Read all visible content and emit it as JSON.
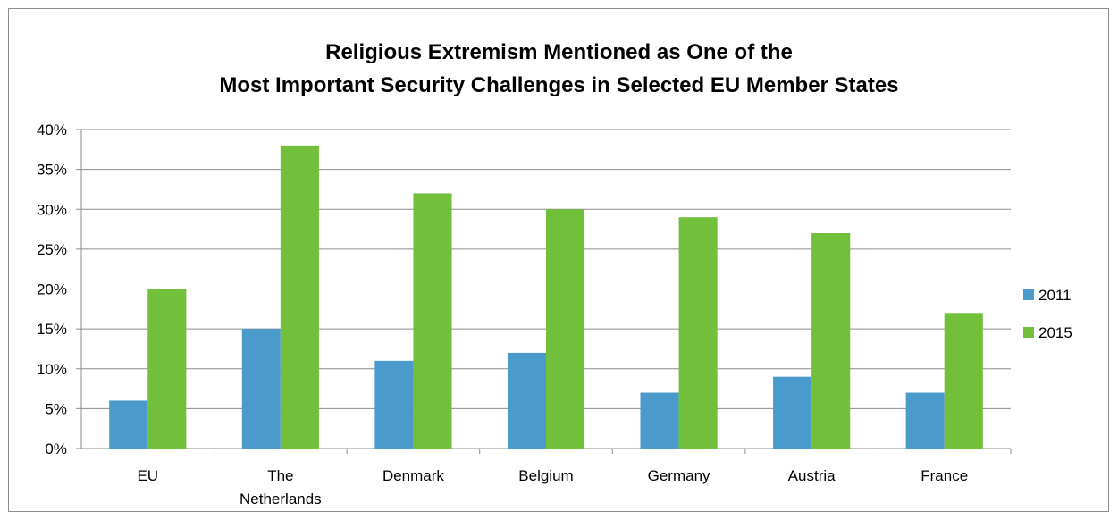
{
  "chart_data": {
    "type": "bar",
    "title_lines": [
      "Religious Extremism Mentioned as One of the",
      "Most Important Security Challenges in Selected EU Member States"
    ],
    "categories": [
      [
        "EU"
      ],
      [
        "The",
        "Netherlands"
      ],
      [
        "Denmark"
      ],
      [
        "Belgium"
      ],
      [
        "Germany"
      ],
      [
        "Austria"
      ],
      [
        "France"
      ]
    ],
    "series": [
      {
        "name": "2011",
        "color": "#4a9bcc",
        "values": [
          6,
          15,
          11,
          12,
          7,
          9,
          7
        ]
      },
      {
        "name": "2015",
        "color": "#72bf3b",
        "values": [
          20,
          38,
          32,
          30,
          29,
          27,
          17
        ]
      }
    ],
    "y_ticks": [
      "0%",
      "5%",
      "10%",
      "15%",
      "20%",
      "25%",
      "30%",
      "35%",
      "40%"
    ],
    "ylim": [
      0,
      40
    ],
    "grid": true,
    "legend_position": "right"
  }
}
